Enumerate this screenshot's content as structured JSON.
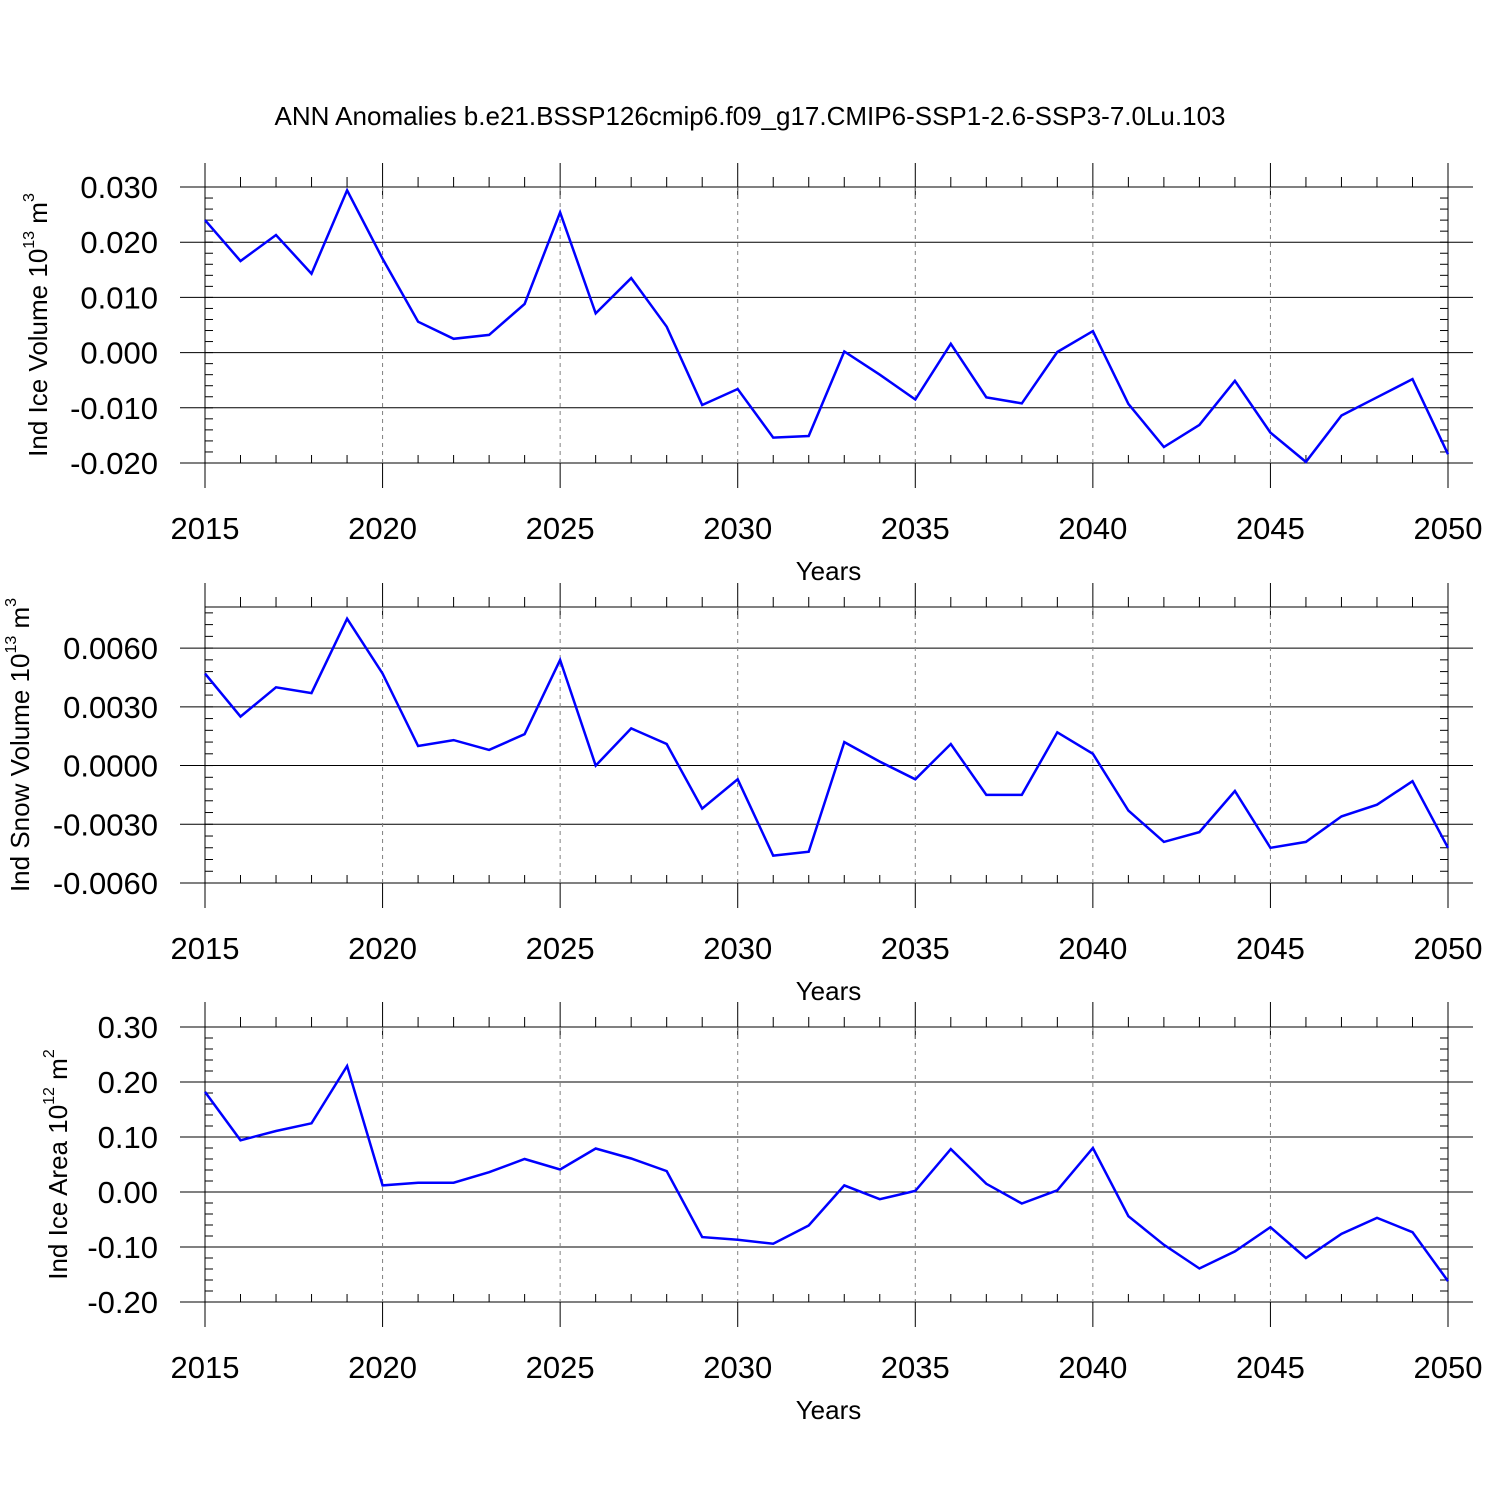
{
  "title": "ANN Anomalies b.e21.BSSP126cmip6.f09_g17.CMIP6-SSP1-2.6-SSP3-7.0Lu.103",
  "colors": {
    "series": "#0000ff",
    "axes": "#000000",
    "grid": "#808080"
  },
  "chart_data": [
    {
      "type": "line",
      "ylabel": {
        "prefix": "Ind Ice Volume 10",
        "exp": "13",
        "unit": " m",
        "unit_exp": "3"
      },
      "xlabel": "Years",
      "xlim": [
        2015,
        2050
      ],
      "ylim": [
        -0.02,
        0.03
      ],
      "y_ticks": [
        "0.030",
        "0.020",
        "0.010",
        "0.000",
        "-0.010",
        "-0.020"
      ],
      "y_tick_values": [
        0.03,
        0.02,
        0.01,
        0.0,
        -0.01,
        -0.02
      ],
      "x_ticks": [
        "2015",
        "2020",
        "2025",
        "2030",
        "2035",
        "2040",
        "2045",
        "2050"
      ],
      "x_tick_values": [
        2015,
        2020,
        2025,
        2030,
        2035,
        2040,
        2045,
        2050
      ],
      "grid": "vertical dashed at labeled x ticks",
      "x": [
        2015,
        2016,
        2017,
        2018,
        2019,
        2020,
        2021,
        2022,
        2023,
        2024,
        2025,
        2026,
        2027,
        2028,
        2029,
        2030,
        2031,
        2032,
        2033,
        2034,
        2035,
        2036,
        2037,
        2038,
        2039,
        2040,
        2041,
        2042,
        2043,
        2044,
        2045,
        2046,
        2047,
        2048,
        2049,
        2050
      ],
      "series": [
        {
          "values": [
            0.024,
            0.0166,
            0.0213,
            0.0143,
            0.0294,
            0.017,
            0.0056,
            0.0025,
            0.0032,
            0.0088,
            0.0254,
            0.0071,
            0.0135,
            0.0047,
            -0.0095,
            -0.0066,
            -0.0154,
            -0.0151,
            0.0002,
            -0.004,
            -0.0085,
            0.0016,
            -0.0081,
            -0.0092,
            0.0001,
            0.0039,
            -0.0093,
            -0.0171,
            -0.0131,
            -0.0051,
            -0.0145,
            -0.0198,
            -0.0114,
            -0.0081,
            -0.0048,
            -0.0184
          ]
        }
      ]
    },
    {
      "type": "line",
      "ylabel": {
        "prefix": "Ind Snow Volume 10",
        "exp": "13",
        "unit": " m",
        "unit_exp": "3"
      },
      "xlabel": "Years",
      "xlim": [
        2015,
        2050
      ],
      "ylim": [
        -0.006,
        0.0081
      ],
      "y_ticks": [
        "0.0060",
        "0.0030",
        "0.0000",
        "-0.0030",
        "-0.0060"
      ],
      "y_tick_values": [
        0.006,
        0.003,
        0.0,
        -0.003,
        -0.006
      ],
      "x_ticks": [
        "2015",
        "2020",
        "2025",
        "2030",
        "2035",
        "2040",
        "2045",
        "2050"
      ],
      "x_tick_values": [
        2015,
        2020,
        2025,
        2030,
        2035,
        2040,
        2045,
        2050
      ],
      "grid": "vertical dashed at labeled x ticks",
      "x": [
        2015,
        2016,
        2017,
        2018,
        2019,
        2020,
        2021,
        2022,
        2023,
        2024,
        2025,
        2026,
        2027,
        2028,
        2029,
        2030,
        2031,
        2032,
        2033,
        2034,
        2035,
        2036,
        2037,
        2038,
        2039,
        2040,
        2041,
        2042,
        2043,
        2044,
        2045,
        2046,
        2047,
        2048,
        2049,
        2050
      ],
      "series": [
        {
          "values": [
            0.0047,
            0.0025,
            0.004,
            0.0037,
            0.0075,
            0.0047,
            0.001,
            0.0013,
            0.0008,
            0.0016,
            0.0054,
            0.0,
            0.0019,
            0.0011,
            -0.0022,
            -0.0007,
            -0.0046,
            -0.0044,
            0.0012,
            0.0002,
            -0.0007,
            0.0011,
            -0.0015,
            -0.0015,
            0.0017,
            0.0006,
            -0.0023,
            -0.0039,
            -0.0034,
            -0.0013,
            -0.0042,
            -0.0039,
            -0.0026,
            -0.002,
            -0.0008,
            -0.0042
          ]
        }
      ]
    },
    {
      "type": "line",
      "ylabel": {
        "prefix": "Ind Ice Area 10",
        "exp": "12",
        "unit": " m",
        "unit_exp": "2"
      },
      "xlabel": "Years",
      "xlim": [
        2015,
        2050
      ],
      "ylim": [
        -0.2,
        0.3
      ],
      "y_ticks": [
        "0.30",
        "0.20",
        "0.10",
        "0.00",
        "-0.10",
        "-0.20"
      ],
      "y_tick_values": [
        0.3,
        0.2,
        0.1,
        0.0,
        -0.1,
        -0.2
      ],
      "x_ticks": [
        "2015",
        "2020",
        "2025",
        "2030",
        "2035",
        "2040",
        "2045",
        "2050"
      ],
      "x_tick_values": [
        2015,
        2020,
        2025,
        2030,
        2035,
        2040,
        2045,
        2050
      ],
      "grid": "vertical dashed at labeled x ticks",
      "x": [
        2015,
        2016,
        2017,
        2018,
        2019,
        2020,
        2021,
        2022,
        2023,
        2024,
        2025,
        2026,
        2027,
        2028,
        2029,
        2030,
        2031,
        2032,
        2033,
        2034,
        2035,
        2036,
        2037,
        2038,
        2039,
        2040,
        2041,
        2042,
        2043,
        2044,
        2045,
        2046,
        2047,
        2048,
        2049,
        2050
      ],
      "series": [
        {
          "values": [
            0.182,
            0.094,
            0.111,
            0.125,
            0.229,
            0.012,
            0.017,
            0.017,
            0.036,
            0.06,
            0.041,
            0.079,
            0.061,
            0.038,
            -0.082,
            -0.087,
            -0.094,
            -0.061,
            0.012,
            -0.013,
            0.002,
            0.078,
            0.015,
            -0.021,
            0.003,
            0.08,
            -0.044,
            -0.096,
            -0.139,
            -0.108,
            -0.064,
            -0.12,
            -0.076,
            -0.047,
            -0.073,
            -0.162
          ]
        }
      ]
    }
  ]
}
